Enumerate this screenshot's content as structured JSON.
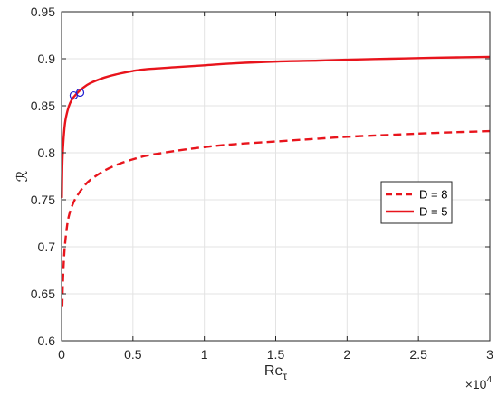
{
  "chart_data": {
    "type": "line",
    "title": "",
    "xlabel": "Re",
    "xlabel_subscript": "τ",
    "ylabel": "ℛ",
    "x_multiplier_base": "×10",
    "x_multiplier_exp": "4",
    "xlim": [
      0,
      30000
    ],
    "ylim": [
      0.6,
      0.95
    ],
    "x_ticks": [
      0,
      5000,
      10000,
      15000,
      20000,
      25000,
      30000
    ],
    "x_tick_labels": [
      "0",
      "0.5",
      "1",
      "1.5",
      "2",
      "2.5",
      "3"
    ],
    "y_ticks": [
      0.6,
      0.65,
      0.7,
      0.75,
      0.8,
      0.85,
      0.9,
      0.95
    ],
    "y_tick_labels": [
      "0.6",
      "0.65",
      "0.7",
      "0.75",
      "0.8",
      "0.85",
      "0.9",
      "0.95"
    ],
    "grid": true,
    "legend_position": "right",
    "series": [
      {
        "name": "D = 8",
        "style": "dashed",
        "color": "#e8141c",
        "x": [
          50,
          100,
          200,
          350,
          500,
          750,
          1000,
          1500,
          2000,
          3000,
          4000,
          5000,
          6000,
          8000,
          10000,
          12000,
          15000,
          18000,
          20000,
          23000,
          26000,
          30000
        ],
        "y": [
          0.636,
          0.665,
          0.695,
          0.718,
          0.732,
          0.744,
          0.752,
          0.763,
          0.771,
          0.781,
          0.788,
          0.793,
          0.797,
          0.802,
          0.806,
          0.809,
          0.812,
          0.815,
          0.817,
          0.819,
          0.821,
          0.823
        ]
      },
      {
        "name": "D = 5",
        "style": "solid",
        "color": "#e8141c",
        "x": [
          20,
          50,
          100,
          200,
          300,
          500,
          700,
          1000,
          1500,
          2000,
          3000,
          4000,
          5000,
          6000,
          8000,
          10000,
          12000,
          15000,
          18000,
          20000,
          23000,
          26000,
          30000
        ],
        "y": [
          0.752,
          0.785,
          0.805,
          0.826,
          0.837,
          0.849,
          0.856,
          0.862,
          0.869,
          0.874,
          0.88,
          0.884,
          0.887,
          0.889,
          0.891,
          0.893,
          0.895,
          0.897,
          0.898,
          0.899,
          0.9,
          0.901,
          0.902
        ]
      }
    ],
    "markers": [
      {
        "x": 850,
        "y": 0.861,
        "shape": "circle",
        "color": "#1f1fd0"
      },
      {
        "x": 1300,
        "y": 0.864,
        "shape": "circle",
        "color": "#1f1fd0"
      }
    ]
  }
}
